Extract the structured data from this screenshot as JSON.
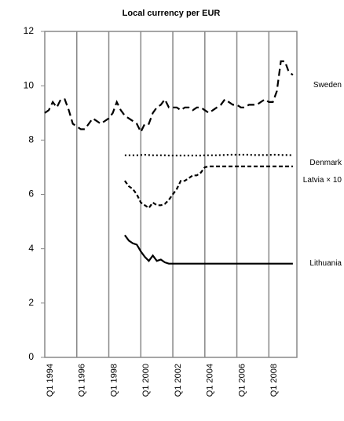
{
  "chart_data": {
    "type": "line",
    "title": "Local currency per EUR",
    "categories": [
      "Q1 1994",
      null,
      null,
      null,
      null,
      null,
      null,
      null,
      "Q1 1996",
      null,
      null,
      null,
      null,
      null,
      null,
      null,
      "Q1 1998",
      null,
      null,
      null,
      null,
      null,
      null,
      null,
      "Q1 2000",
      null,
      null,
      null,
      null,
      null,
      null,
      null,
      "Q1 2002",
      null,
      null,
      null,
      null,
      null,
      null,
      null,
      "Q1 2004",
      null,
      null,
      null,
      null,
      null,
      null,
      null,
      "Q1 2006",
      null,
      null,
      null,
      null,
      null,
      null,
      null,
      "Q1 2008",
      null,
      null,
      null,
      null,
      null,
      null
    ],
    "series": [
      {
        "name": "Sweden",
        "color": "#000000",
        "dash": "9,5",
        "values": [
          9.0,
          9.1,
          9.4,
          9.2,
          9.5,
          9.5,
          9.1,
          8.6,
          8.5,
          8.4,
          8.4,
          8.6,
          8.8,
          8.7,
          8.6,
          8.7,
          8.8,
          9.0,
          9.4,
          9.1,
          8.9,
          8.8,
          8.7,
          8.6,
          8.3,
          8.6,
          8.6,
          9.0,
          9.2,
          9.3,
          9.5,
          9.2,
          9.2,
          9.2,
          9.1,
          9.2,
          9.2,
          9.1,
          9.2,
          9.2,
          9.1,
          9.0,
          9.1,
          9.2,
          9.3,
          9.5,
          9.4,
          9.3,
          9.3,
          9.2,
          9.2,
          9.3,
          9.3,
          9.3,
          9.4,
          9.5,
          9.4,
          9.4,
          9.8,
          10.9,
          10.9,
          10.5,
          10.4
        ]
      },
      {
        "name": "Denmark",
        "color": "#000000",
        "dash": "2,3",
        "values": [
          null,
          null,
          null,
          null,
          null,
          null,
          null,
          null,
          null,
          null,
          null,
          null,
          null,
          null,
          null,
          null,
          null,
          null,
          null,
          null,
          7.44,
          7.44,
          7.44,
          7.44,
          7.45,
          7.46,
          7.45,
          7.44,
          7.44,
          7.44,
          7.44,
          7.43,
          7.43,
          7.43,
          7.43,
          7.43,
          7.43,
          7.43,
          7.43,
          7.43,
          7.44,
          7.44,
          7.44,
          7.44,
          7.45,
          7.45,
          7.46,
          7.46,
          7.46,
          7.46,
          7.46,
          7.46,
          7.45,
          7.45,
          7.45,
          7.45,
          7.45,
          7.46,
          7.46,
          7.45,
          7.45,
          7.45,
          7.44
        ]
      },
      {
        "name": "Latvia × 10",
        "color": "#000000",
        "dash": "5,3",
        "values": [
          null,
          null,
          null,
          null,
          null,
          null,
          null,
          null,
          null,
          null,
          null,
          null,
          null,
          null,
          null,
          null,
          null,
          null,
          null,
          null,
          6.5,
          6.3,
          6.2,
          6.0,
          5.7,
          5.6,
          5.5,
          5.7,
          5.6,
          5.6,
          5.65,
          5.8,
          6.0,
          6.2,
          6.5,
          6.5,
          6.6,
          6.7,
          6.7,
          6.8,
          7.0,
          7.03,
          7.03,
          7.03,
          7.03,
          7.03,
          7.03,
          7.03,
          7.03,
          7.03,
          7.03,
          7.03,
          7.03,
          7.03,
          7.03,
          7.03,
          7.03,
          7.03,
          7.03,
          7.03,
          7.03,
          7.03,
          7.03
        ]
      },
      {
        "name": "Lithuania",
        "color": "#000000",
        "dash": "",
        "values": [
          null,
          null,
          null,
          null,
          null,
          null,
          null,
          null,
          null,
          null,
          null,
          null,
          null,
          null,
          null,
          null,
          null,
          null,
          null,
          null,
          4.5,
          4.3,
          4.2,
          4.15,
          3.9,
          3.7,
          3.55,
          3.75,
          3.55,
          3.6,
          3.5,
          3.45,
          3.45,
          3.45,
          3.45,
          3.45,
          3.45,
          3.45,
          3.45,
          3.45,
          3.45,
          3.45,
          3.45,
          3.45,
          3.45,
          3.45,
          3.45,
          3.45,
          3.45,
          3.45,
          3.45,
          3.45,
          3.45,
          3.45,
          3.45,
          3.45,
          3.45,
          3.45,
          3.45,
          3.45,
          3.45,
          3.45,
          3.45
        ]
      }
    ],
    "ylim": [
      0,
      12
    ],
    "yticks": [
      0,
      2,
      4,
      6,
      8,
      10,
      12
    ],
    "grid": "x"
  }
}
